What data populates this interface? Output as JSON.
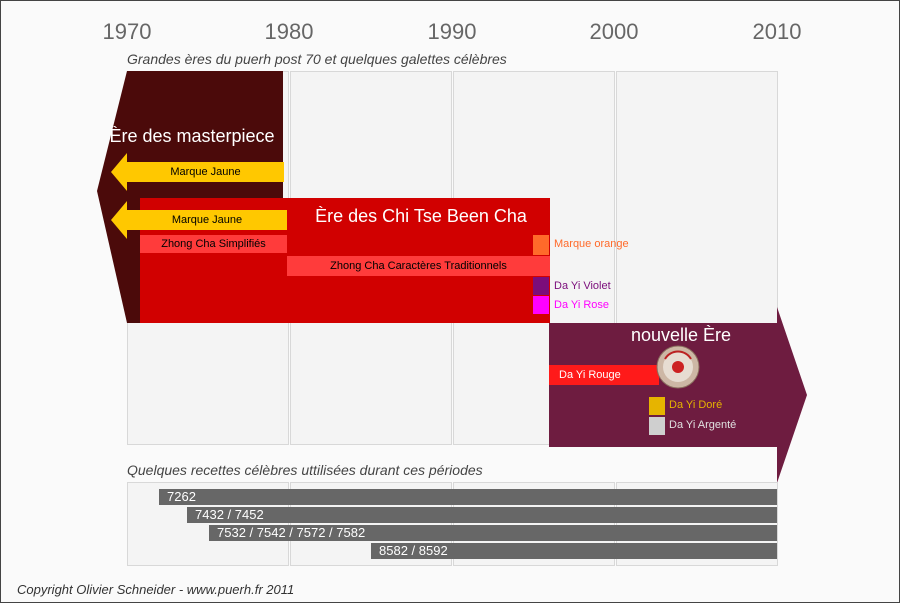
{
  "years": [
    "1970",
    "1980",
    "1990",
    "2000",
    "2010"
  ],
  "captions": {
    "top": "Grandes ères du puerh post 70 et quelques galettes célèbres",
    "bottom": "Quelques recettes célèbres uttilisées durant ces périodes"
  },
  "eras": {
    "masterpiece": "Ère des masterpiece",
    "chi_tse": "Ère des Chi Tse Been Cha",
    "nouvelle": "nouvelle Ère"
  },
  "cakes": {
    "marque_jaune_1": "Marque Jaune",
    "marque_jaune_2": "Marque Jaune",
    "zhong_cha_simplifies": "Zhong Cha Simplifiés",
    "zhong_cha_traditionnels": "Zhong Cha Caractères Traditionnels",
    "marque_orange": "Marque orange",
    "da_yi_violet": "Da Yi Violet",
    "da_yi_rose": "Da Yi Rose",
    "da_yi_rouge": "Da Yi Rouge",
    "da_yi_dore": "Da Yi Doré",
    "da_yi_argente": "Da Yi Argenté"
  },
  "recipes": [
    "7262",
    "7432 / 7452",
    "7532 / 7542 / 7572 / 7582",
    "8582 / 8592"
  ],
  "copyright": "Copyright Olivier Schneider - www.puerh.fr 2011",
  "colors": {
    "masterpiece": "#4b0a0a",
    "chi_tse": "#d10000",
    "nouvelle": "#6e1c40",
    "yellow": "#ffc800",
    "light_red": "#ff3b3b",
    "orange": "#ff6a2a",
    "violet": "#7b0d7b",
    "rose": "#ff00ff",
    "rouge": "#ff1a1a",
    "gold": "#e6b400",
    "silver": "#cfcfcf",
    "recipe": "#676767"
  }
}
